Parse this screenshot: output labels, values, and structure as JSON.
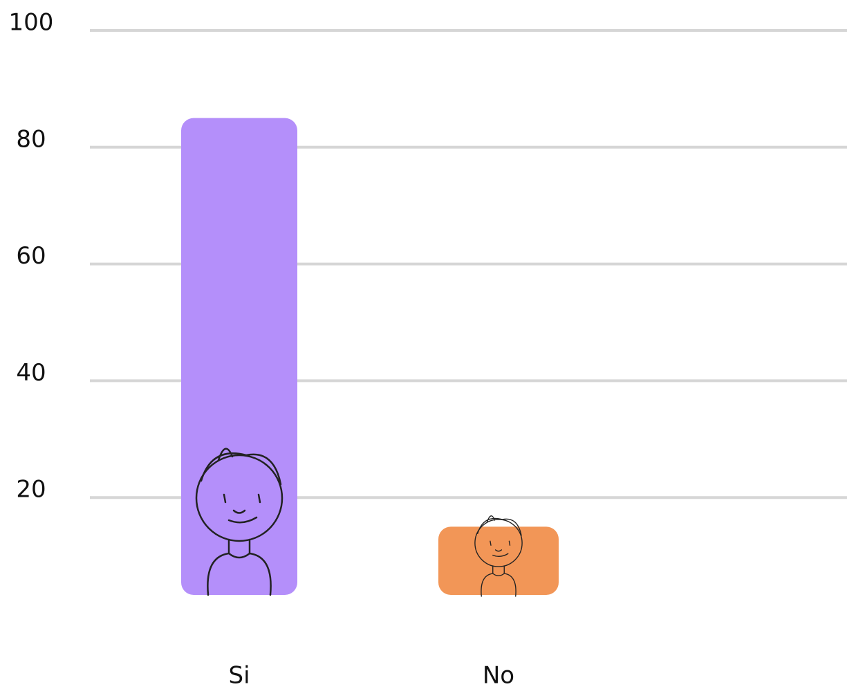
{
  "chart_data": {
    "type": "bar",
    "categories": [
      "Si",
      "No"
    ],
    "values": [
      85,
      15
    ],
    "colors": [
      "#b48ffa",
      "#f29657"
    ],
    "ylim": [
      0,
      100
    ],
    "yticks": [
      20,
      40,
      60,
      80,
      100
    ],
    "grid": true
  }
}
